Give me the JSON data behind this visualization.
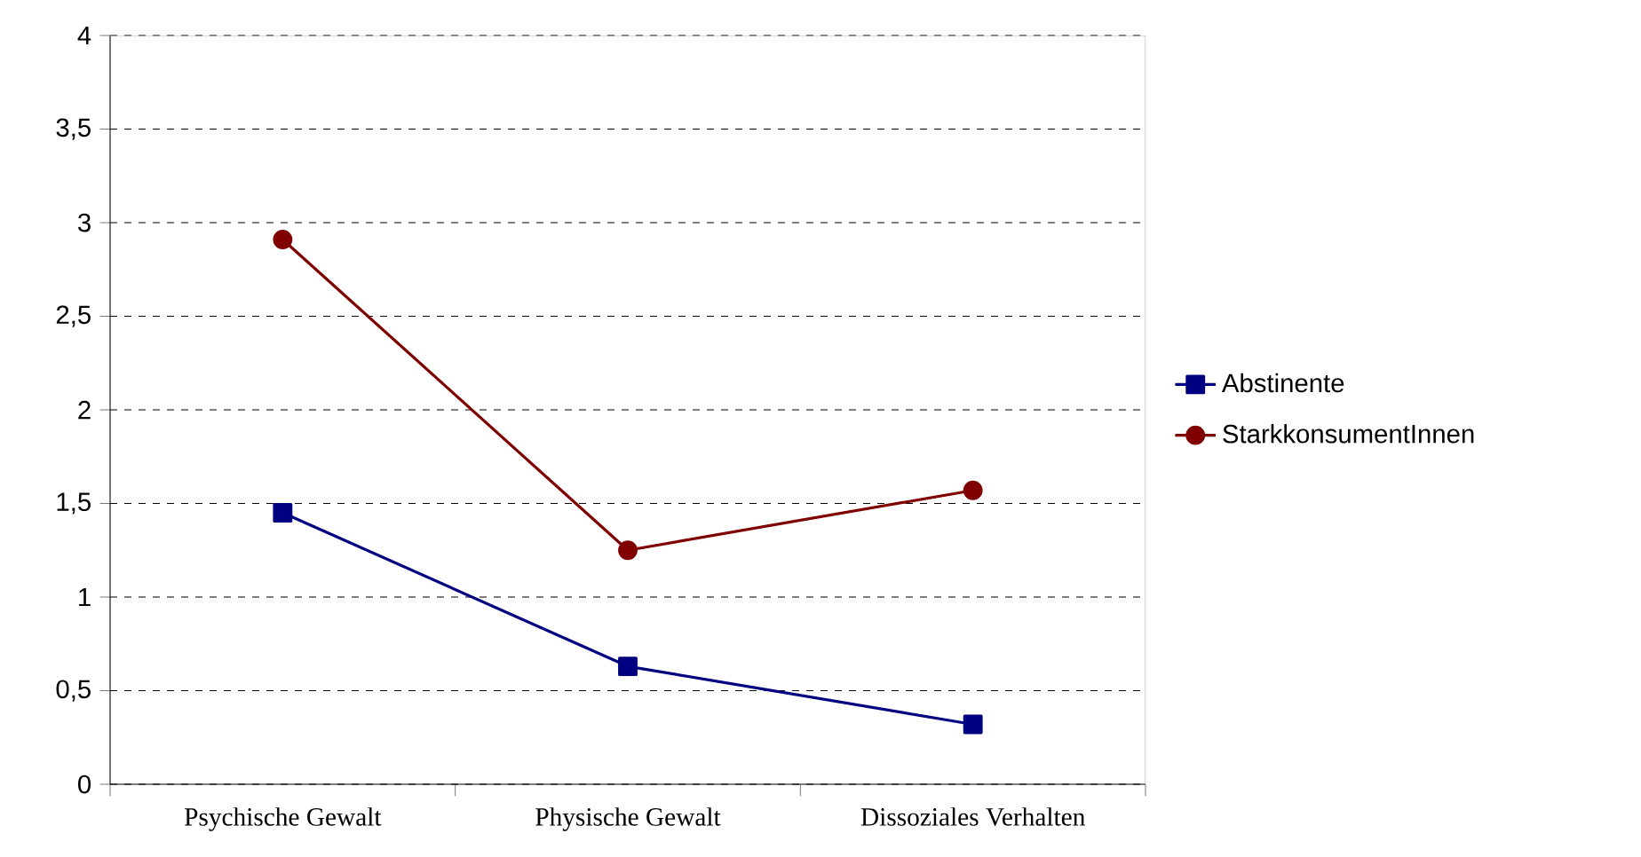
{
  "chart_data": {
    "type": "line",
    "categories": [
      "Psychische Gewalt",
      "Physische Gewalt",
      "Dissoziales Verhalten"
    ],
    "series": [
      {
        "name": "Abstinente",
        "color": "#000080",
        "marker": "square",
        "values": [
          1.45,
          0.63,
          0.32
        ]
      },
      {
        "name": "StarkkonsumentInnen",
        "color": "#800000",
        "marker": "circle",
        "values": [
          2.91,
          1.25,
          1.57
        ]
      }
    ],
    "ylim": [
      0,
      4
    ],
    "yticks": [
      0,
      {
        "value": 0.5,
        "label": "0,5"
      },
      1,
      {
        "value": 1.5,
        "label": "1,5"
      },
      2,
      {
        "value": 2.5,
        "label": "2,5"
      },
      3,
      {
        "value": 3.5,
        "label": "3,5"
      },
      4
    ],
    "grid": "y",
    "legend": "right",
    "line_style": "solid"
  }
}
